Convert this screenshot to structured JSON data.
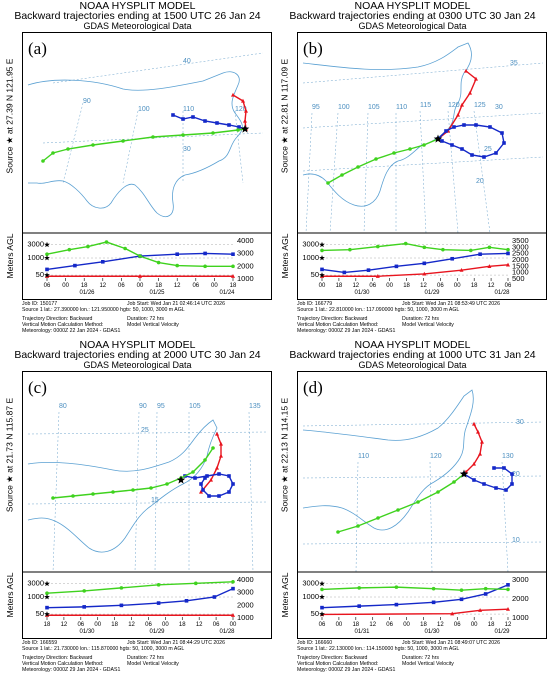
{
  "colors": {
    "low": "#e8141e",
    "mid": "#1428c8",
    "high": "#3fd21e",
    "coast": "#5aa0d2",
    "grid": "#4c8fc0"
  },
  "icons": {
    "source": "star-icon"
  },
  "panels": [
    {
      "letter": "(a)",
      "model": "NOAA HYSPLIT MODEL",
      "title": "Backward trajectories ending at 1500 UTC 26 Jan 24",
      "met": "GDAS Meteorological Data",
      "source_label": "Source ★ at  27.39 N  121.95 E",
      "agl_label": "Meters AGL",
      "lat_labels": [
        "40",
        "30"
      ],
      "lon_labels": [
        "90",
        "100",
        "110",
        "120"
      ],
      "height_left": [
        "3000",
        "1000",
        "50"
      ],
      "height_right": [
        "4000",
        "3000",
        "2000",
        "1000"
      ],
      "hour_ticks": [
        "06",
        "00",
        "18",
        "12",
        "06",
        "00",
        "18",
        "12",
        "06",
        "00",
        "18"
      ],
      "date_labels": [
        "01/26",
        "01/25",
        "01/24"
      ],
      "job_id": "Job ID: 150177",
      "job_start": "Job Start: Wed Jan 21 02:46:14 UTC 2026",
      "source_line": "Source 1 lat.: 27.390000   lon.: 121.950000   hgts: 50, 1000, 3000 m AGL",
      "traj_dir": "Trajectory Direction: Backward",
      "duration": "Duration: 72 hrs",
      "vert_method": "Vertical Motion Calculation Method:",
      "vert_value": "Model Vertical Velocity",
      "meteorology": "Meteorology: 0000Z 22 Jan 2024 - GDAS1"
    },
    {
      "letter": "(b)",
      "model": "NOAA HYSPLIT MODEL",
      "title": "Backward trajectories ending at 0300 UTC 30 Jan 24",
      "met": "GDAS Meteorological Data",
      "source_label": "Source ★ at  22.81 N  117.09 E",
      "agl_label": "Meters AGL",
      "lat_labels": [
        "35",
        "30",
        "25",
        "20"
      ],
      "lon_labels": [
        "95",
        "100",
        "105",
        "110",
        "115",
        "120",
        "125"
      ],
      "height_left": [
        "3000",
        "1000",
        "50"
      ],
      "height_right": [
        "3500",
        "3000",
        "2500",
        "2000",
        "1500",
        "1000",
        "500"
      ],
      "hour_ticks": [
        "00",
        "18",
        "12",
        "06",
        "00",
        "18",
        "12",
        "06",
        "00",
        "18",
        "12",
        "06"
      ],
      "date_labels": [
        "01/30",
        "01/29",
        "01/28"
      ],
      "job_id": "Job ID: 166779",
      "job_start": "Job Start: Wed Jan 21 08:53:49 UTC 2026",
      "source_line": "Source 1 lat.: 22.810000   lon.: 117.090000   hgts: 50, 1000, 3000 m AGL",
      "traj_dir": "Trajectory Direction: Backward",
      "duration": "Duration: 72 hrs",
      "vert_method": "Vertical Motion Calculation Method:",
      "vert_value": "Model Vertical Velocity",
      "meteorology": "Meteorology: 0000Z 29 Jan 2024 - GDAS1"
    },
    {
      "letter": "(c)",
      "model": "NOAA HYSPLIT MODEL",
      "title": "Backward trajectories ending at 2000 UTC 30 Jan 24",
      "met": "GDAS Meteorological Data",
      "source_label": "Source ★ at  21.73 N  115.87 E",
      "agl_label": "Meters AGL",
      "lat_labels": [
        "25",
        "15"
      ],
      "lon_labels": [
        "80",
        "90",
        "95",
        "105",
        "135"
      ],
      "height_left": [
        "3000",
        "1000",
        "50"
      ],
      "height_right": [
        "4000",
        "3000",
        "2000",
        "1000"
      ],
      "hour_ticks": [
        "18",
        "12",
        "06",
        "00",
        "18",
        "12",
        "06",
        "00",
        "18",
        "12",
        "06",
        "00"
      ],
      "date_labels": [
        "01/30",
        "01/29",
        "01/28"
      ],
      "job_id": "Job ID: 166559",
      "job_start": "Job Start: Wed Jan 21 08:44:29 UTC 2026",
      "source_line": "Source 1 lat.: 21.730000   lon.: 115.870000   hgts: 50, 1000, 3000 m AGL",
      "traj_dir": "Trajectory Direction: Backward",
      "duration": "Duration: 72 hrs",
      "vert_method": "Vertical Motion Calculation Method:",
      "vert_value": "Model Vertical Velocity",
      "meteorology": "Meteorology: 0000Z 29 Jan 2024 - GDAS1"
    },
    {
      "letter": "(d)",
      "model": "NOAA HYSPLIT MODEL",
      "title": "Backward trajectories ending at 1000 UTC 31 Jan 24",
      "met": "GDAS Meteorological Data",
      "source_label": "Source ★ at  22.13 N  114.15 E",
      "agl_label": "Meters AGL",
      "lat_labels": [
        "30",
        "20",
        "10"
      ],
      "lon_labels": [
        "110",
        "120",
        "130"
      ],
      "height_left": [
        "3000",
        "1000",
        "50"
      ],
      "height_right": [
        "3000",
        "2000",
        "1000"
      ],
      "hour_ticks": [
        "06",
        "00",
        "18",
        "12",
        "06",
        "00",
        "18",
        "12",
        "06",
        "00",
        "18",
        "12"
      ],
      "date_labels": [
        "01/31",
        "01/30",
        "01/29"
      ],
      "job_id": "Job ID: 166660",
      "job_start": "Job Start: Wed Jan 21 08:49:07 UTC 2026",
      "source_line": "Source 1 lat.: 22.130000   lon.: 114.150000   hgts: 50, 1000, 3000 m AGL",
      "traj_dir": "Trajectory Direction: Backward",
      "duration": "Duration: 72 hrs",
      "vert_method": "Vertical Motion Calculation Method:",
      "vert_value": "Model Vertical Velocity",
      "meteorology": "Meteorology: 0000Z 29 Jan 2024 - GDAS1"
    }
  ]
}
